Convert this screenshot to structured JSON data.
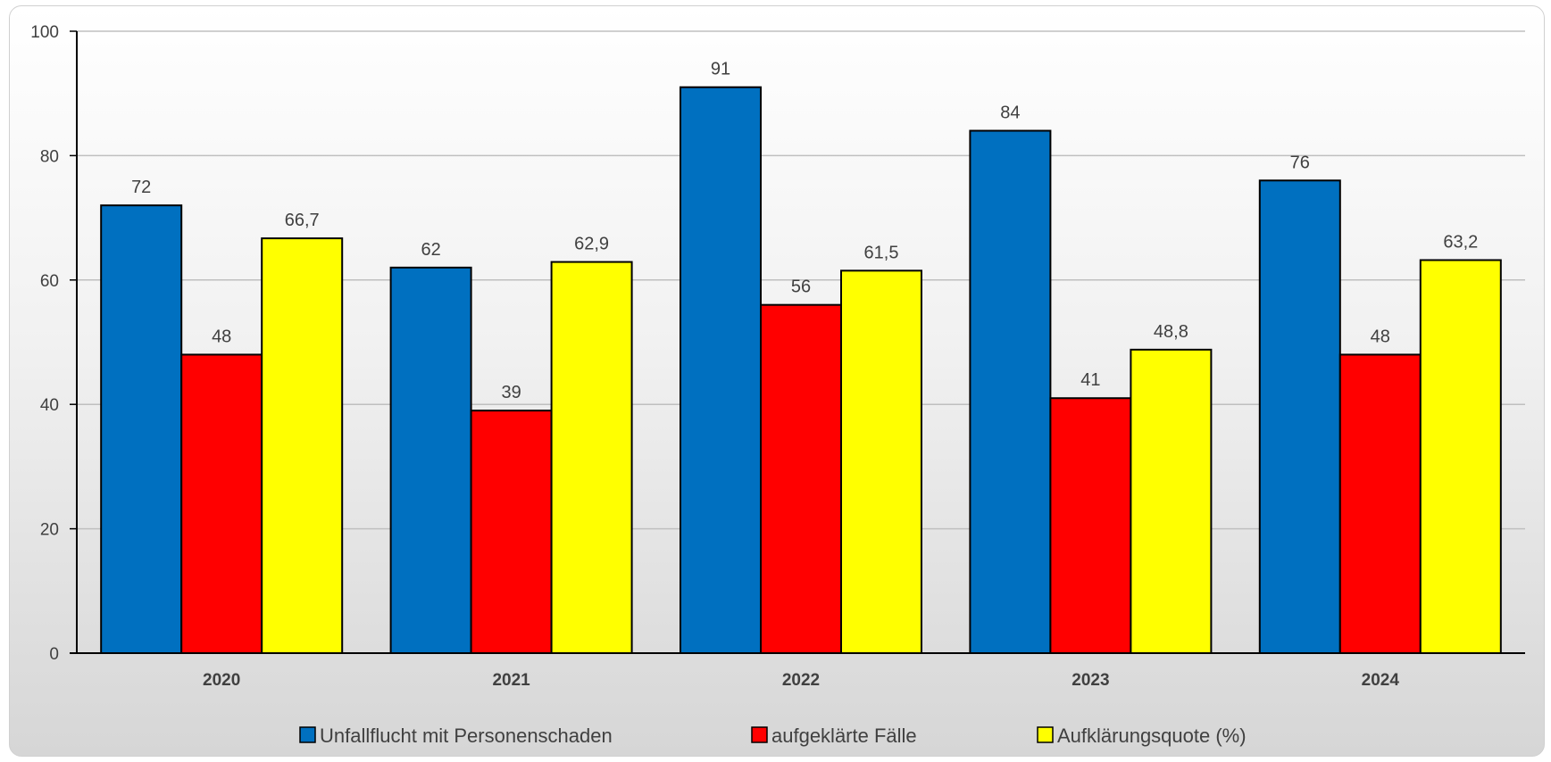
{
  "chart_data": {
    "type": "bar",
    "categories": [
      "2020",
      "2021",
      "2022",
      "2023",
      "2024"
    ],
    "series": [
      {
        "name": "Unfallflucht mit Personenschaden",
        "color": "#0070C0",
        "values": [
          72,
          62,
          91,
          84,
          76
        ],
        "labels": [
          "72",
          "62",
          "91",
          "84",
          "76"
        ]
      },
      {
        "name": "aufgeklärte Fälle",
        "color": "#FF0000",
        "values": [
          48,
          39,
          56,
          41,
          48
        ],
        "labels": [
          "48",
          "39",
          "56",
          "41",
          "48"
        ]
      },
      {
        "name": "Aufklärungsquote (%)",
        "color": "#FFFF00",
        "values": [
          66.7,
          62.9,
          61.5,
          48.8,
          63.2
        ],
        "labels": [
          "66,7",
          "62,9",
          "61,5",
          "48,8",
          "63,2"
        ]
      }
    ],
    "ylim": [
      0,
      100
    ],
    "yticks": [
      0,
      20,
      40,
      60,
      80,
      100
    ],
    "title": "",
    "xlabel": "",
    "ylabel": "",
    "grid": true,
    "legend_position": "bottom"
  }
}
